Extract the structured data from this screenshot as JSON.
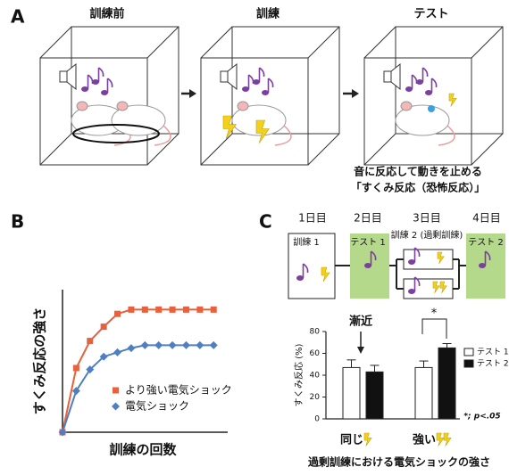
{
  "panel_labels": [
    "A",
    "B",
    "C"
  ],
  "panel_a": {
    "steps": [
      "訓練前",
      "訓練",
      "テスト"
    ],
    "caption": [
      "音に反応して動きを止める",
      "「すくみ反応（恐怖反応）」"
    ]
  },
  "panel_c": {
    "days": [
      "1日目",
      "2日目",
      "3日目",
      "4日目"
    ],
    "boxes": [
      "訓練 1",
      "テスト 1",
      "訓練 2 (過剰訓練)",
      "テスト 2"
    ]
  },
  "chart_data": [
    {
      "type": "line",
      "xlabel": "訓練の回数",
      "ylabel": "すくみ反応の強さ",
      "x": [
        0,
        1,
        2,
        3,
        4,
        5,
        6,
        7,
        8,
        9,
        10,
        11
      ],
      "xlim": [
        0,
        11.7
      ],
      "ylim": [
        0,
        100
      ],
      "legend": "right",
      "series": [
        {
          "name": "より強い電気ショック",
          "color": "#e8603c",
          "marker": "square",
          "values": [
            0,
            45,
            64,
            74,
            83,
            86,
            86,
            86,
            86,
            86,
            86,
            86
          ]
        },
        {
          "name": "電気ショック",
          "color": "#4f7fc0",
          "marker": "diamond",
          "values": [
            0,
            29,
            44,
            53,
            56,
            59,
            61,
            61,
            61,
            61,
            61,
            61
          ]
        }
      ]
    },
    {
      "type": "bar",
      "ylabel": "すくみ反応 (%)",
      "xlabel": "過剰訓練における電気ショックの強さ",
      "categories": [
        "同じ",
        "強い"
      ],
      "ylim": [
        0,
        80
      ],
      "yticks": [
        0,
        20,
        40,
        60,
        80
      ],
      "legend": "upper right",
      "series": [
        {
          "name": "テスト 1",
          "color": "#ffffff",
          "values": [
            47,
            47
          ],
          "errors": [
            7,
            6
          ]
        },
        {
          "name": "テスト 2",
          "color": "#111111",
          "values": [
            43,
            65
          ],
          "errors": [
            6,
            4
          ]
        }
      ],
      "annotations": [
        "漸近",
        "*",
        "*; p<.05"
      ]
    }
  ]
}
